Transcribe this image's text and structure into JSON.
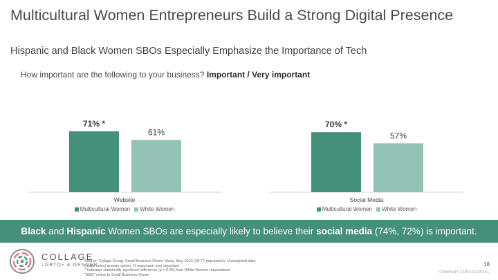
{
  "title": "Multicultural Women Entrepreneurs Build a Strong Digital Presence",
  "subtitle": "Hispanic and Black Women SBOs Especially Emphasize the Importance of Tech",
  "question": {
    "text": "How important are the following to your business?",
    "bold": "Important / Very important"
  },
  "colors": {
    "multicultural": "#45907b",
    "white_women": "#93c3b4",
    "banner": "#45907b"
  },
  "chart_data": [
    {
      "type": "bar",
      "categories": [
        "Website"
      ],
      "series": [
        {
          "name": "Multicultural Women",
          "values": [
            71
          ],
          "labels": [
            "71% *"
          ],
          "bold": true
        },
        {
          "name": "White Women",
          "values": [
            61
          ],
          "labels": [
            "61%"
          ],
          "bold": false
        }
      ],
      "ylim": [
        0,
        80
      ],
      "grid": false,
      "legend": "bottom"
    },
    {
      "type": "bar",
      "categories": [
        "Social Media"
      ],
      "series": [
        {
          "name": "Multicultural Women",
          "values": [
            70
          ],
          "labels": [
            "70% *"
          ],
          "bold": true
        },
        {
          "name": "White Women",
          "values": [
            57
          ],
          "labels": [
            "57%"
          ],
          "bold": false
        }
      ],
      "ylim": [
        0,
        80
      ],
      "grid": false,
      "legend": "bottom"
    }
  ],
  "banner": {
    "b1": "Black",
    "t1": " and ",
    "b2": "Hispanic",
    "t2": " Women SBOs are especially likely to believe their ",
    "b3": "social media",
    "t3": " (74%, 72%) is important."
  },
  "brand": {
    "name": "COLLAGE",
    "sub": "LGBTQ+ & GENDER"
  },
  "source_lines": [
    "Source: Collage Group, Small Business Owner Study, May 2023 (18-77 population), Unweighted data",
    "Single select answer option, % important, very important",
    "* Indicates statistically significant difference (p > 0.95) from White Women respondents",
    "\"SBO\" refers to Small Business Owner"
  ],
  "page_number": "18",
  "confidential": "COMPANY CONFIDENTIAL"
}
